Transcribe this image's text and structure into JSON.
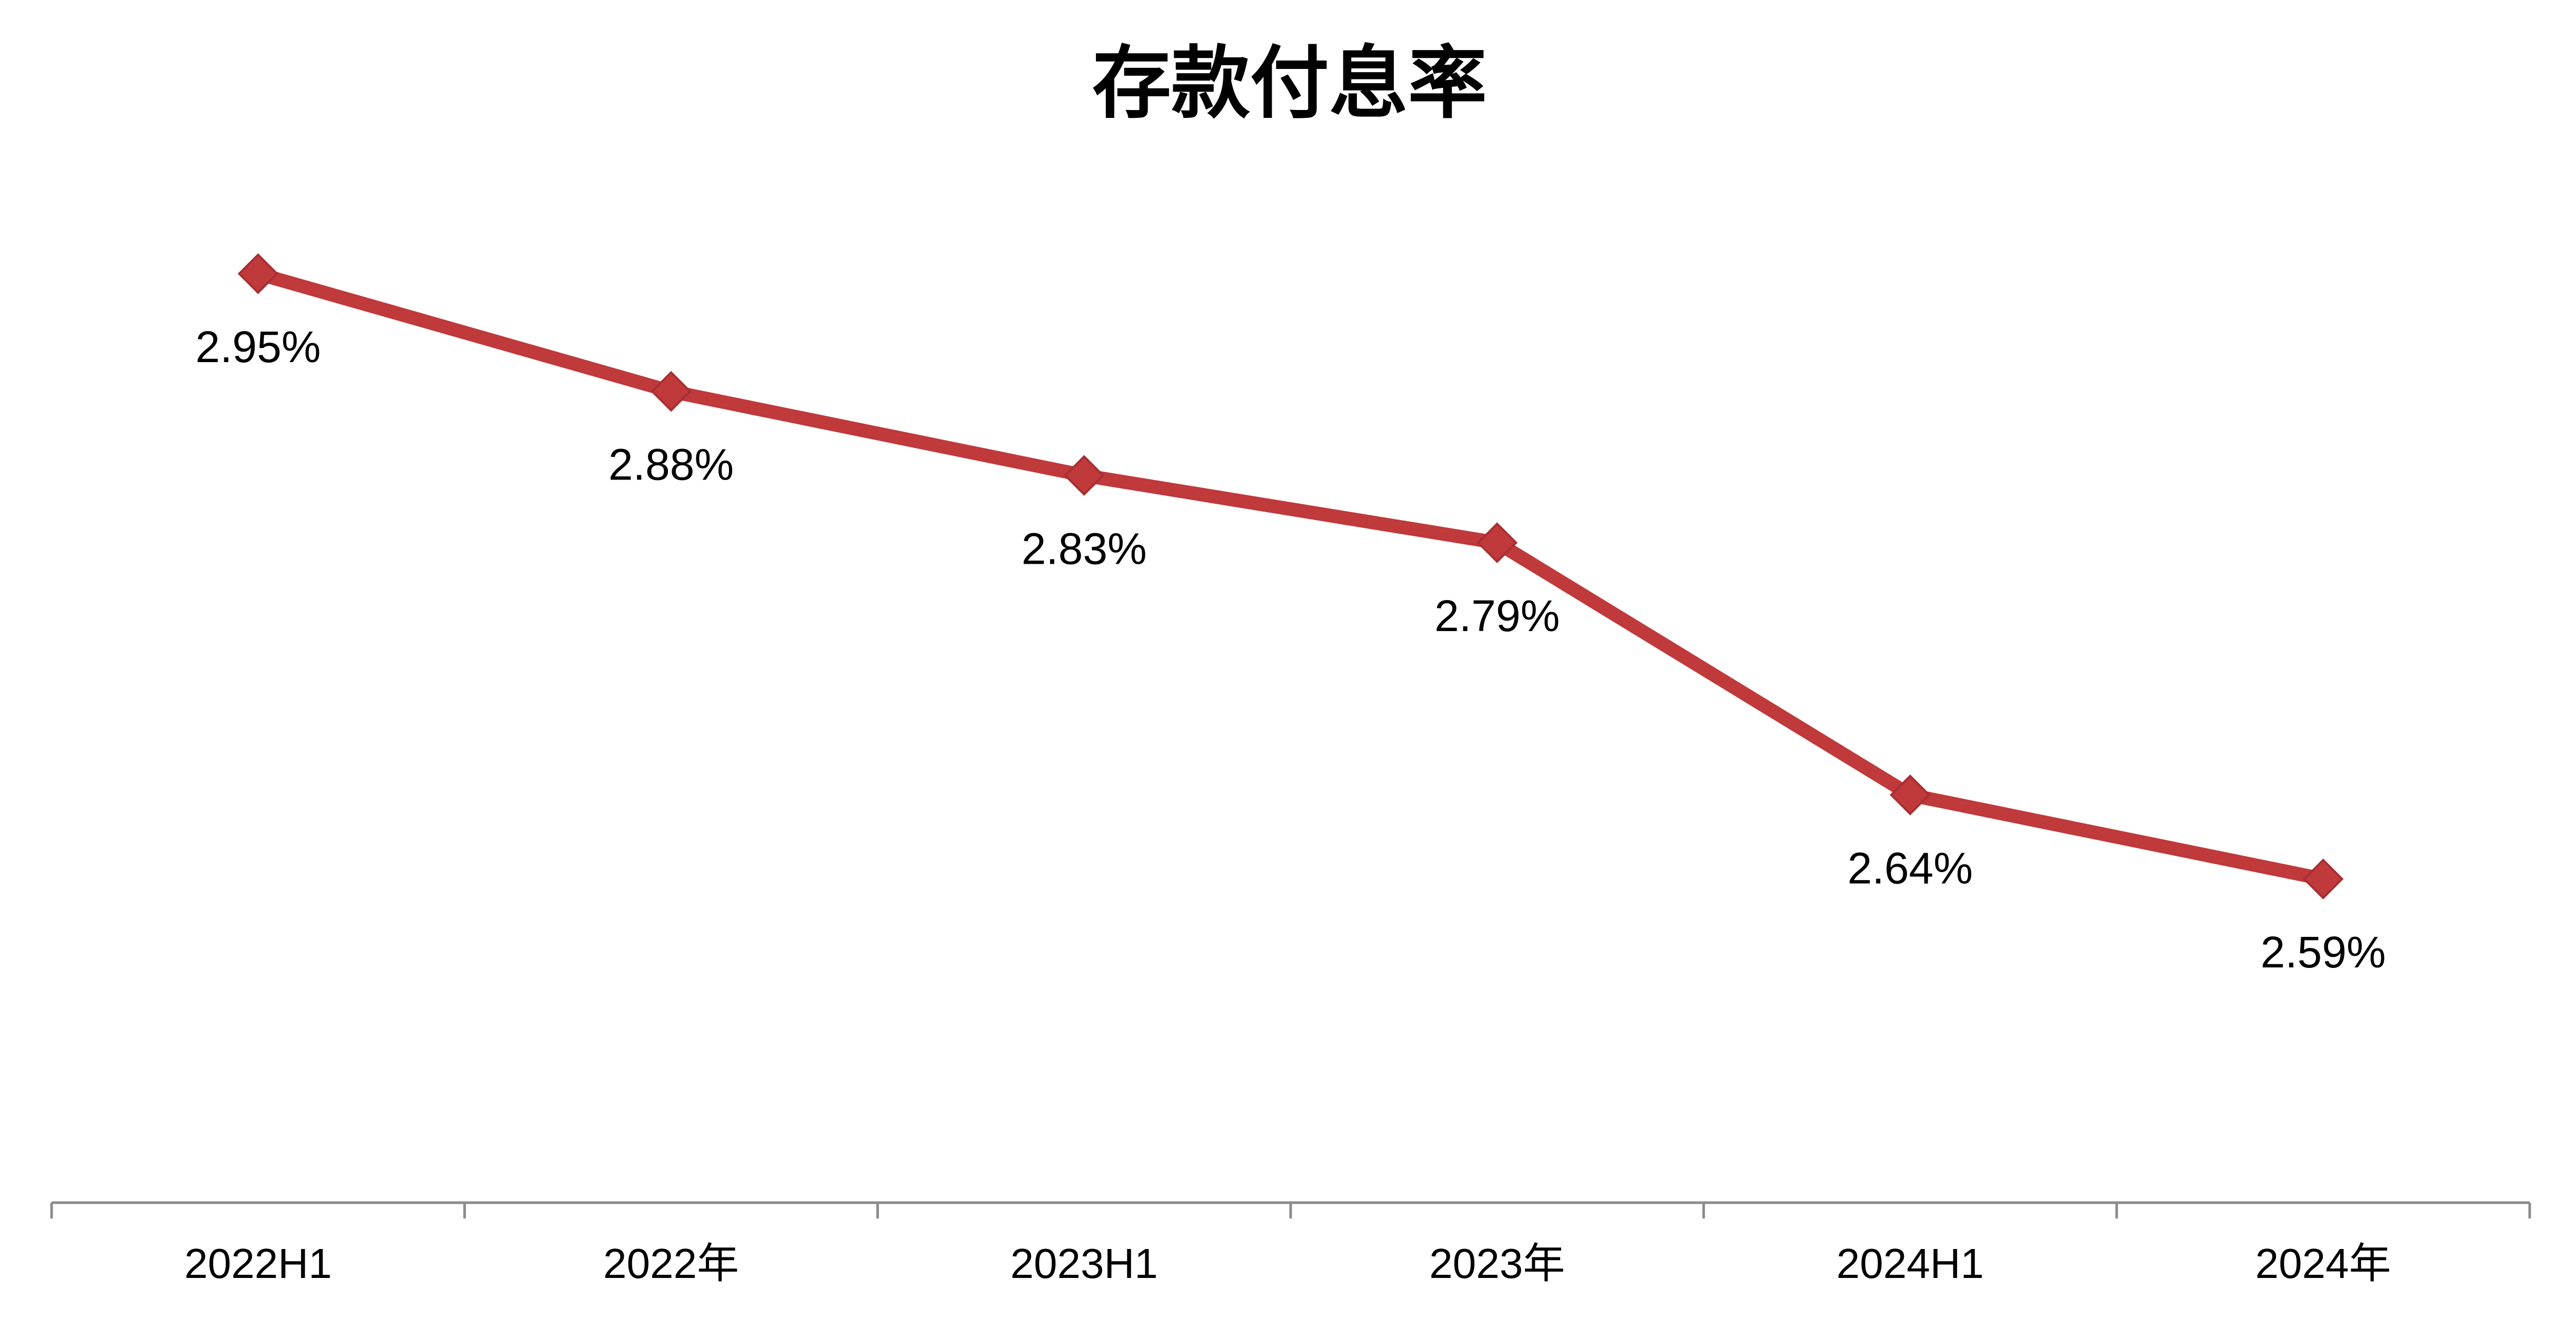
{
  "chart_data": {
    "type": "line",
    "title": "存款付息率",
    "categories": [
      "2022H1",
      "2022年",
      "2023H1",
      "2023年",
      "2024H1",
      "2024年"
    ],
    "series": [
      {
        "values": [
          2.95,
          2.88,
          2.83,
          2.79,
          2.64,
          2.59
        ],
        "labels": [
          "2.95%",
          "2.88%",
          "2.83%",
          "2.79%",
          "2.64%",
          "2.59%"
        ],
        "color": "#C0393B",
        "marker": "diamond"
      }
    ],
    "xlabel": "",
    "ylabel": "",
    "y_axis_visible": false,
    "grid": false,
    "legend": "none"
  }
}
